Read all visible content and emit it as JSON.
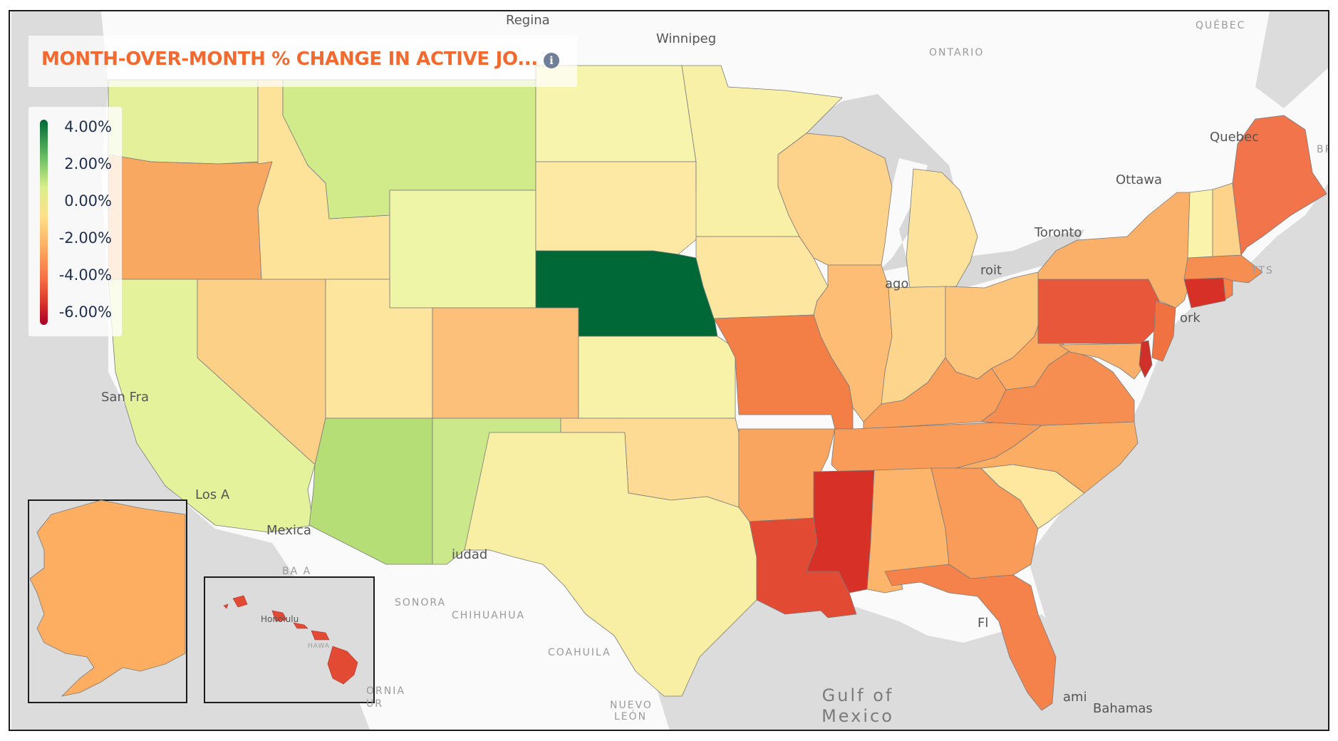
{
  "title": "MONTH-OVER-MONTH % CHANGE IN ACTIVE JO...",
  "info_icon": "info-icon",
  "legend": {
    "labels": [
      "4.00%",
      "2.00%",
      "0.00%",
      "-2.00%",
      "-4.00%",
      "-6.00%"
    ],
    "colors": [
      "#006837",
      "#66bd63",
      "#d9ef8b",
      "#fee08b",
      "#fdae61",
      "#f46d43",
      "#d73027",
      "#a50026"
    ]
  },
  "places": {
    "regina": "Regina",
    "winnipeg": "Winnipeg",
    "ontario": "ONTARIO",
    "quebec_prov": "QUÉBEC",
    "quebec_city": "Quebec",
    "ottawa": "Ottawa",
    "toronto": "Toronto",
    "detroit": "roit",
    "chicago": "ago",
    "new_york": "ork",
    "massachusetts": "TTS",
    "san_francisco": "San Fra",
    "los_angeles": "Los A",
    "mexicali": "Mexica",
    "baja": "BA A",
    "sonora": "SONORA",
    "chihuahua": "CHIHUAHUA",
    "ciudad": "iudad",
    "coahuila": "COAHUILA",
    "nuevo_leon_1": "NUEVO",
    "nuevo_leon_2": "LEÓN",
    "gulf_1": "Gulf of",
    "gulf_2": "Mexico",
    "florida": "Fl",
    "miami": "ami",
    "bahamas": "Bahamas",
    "honolulu": "Honolulu",
    "hawaii": "HAWA",
    "california_mx": "ORNIA",
    "bcs": "UR",
    "brunswick": "BRUN"
  }
}
